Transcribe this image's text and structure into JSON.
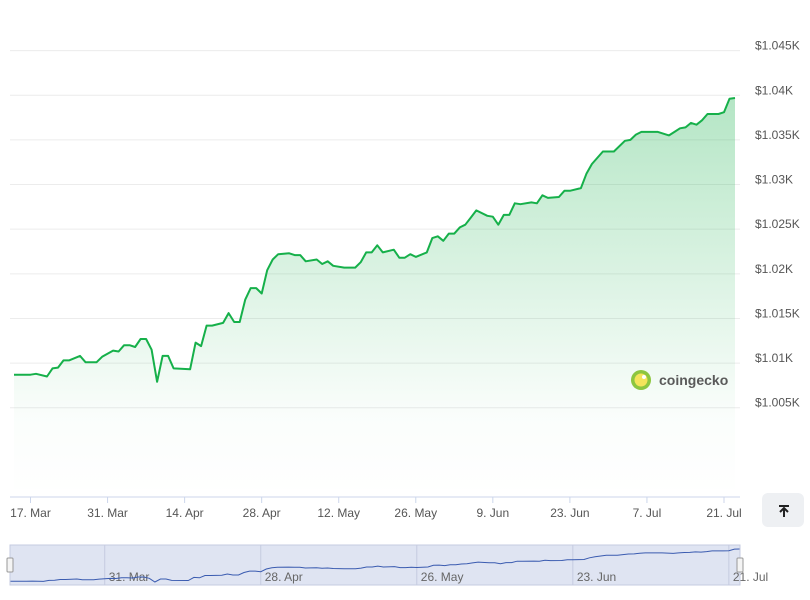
{
  "chart_data": {
    "type": "area",
    "x": [
      "03-14",
      "03-17",
      "03-18",
      "03-20",
      "03-21",
      "03-22",
      "03-23",
      "03-24",
      "03-26",
      "03-27",
      "03-29",
      "03-30",
      "04-01",
      "04-02",
      "04-03",
      "04-04",
      "04-05",
      "04-06",
      "04-07",
      "04-08",
      "04-09",
      "04-10",
      "04-11",
      "04-12",
      "04-15",
      "04-16",
      "04-17",
      "04-18",
      "04-19",
      "04-21",
      "04-22",
      "04-23",
      "04-24",
      "04-25",
      "04-26",
      "04-27",
      "04-28",
      "04-29",
      "04-30",
      "05-01",
      "05-03",
      "05-04",
      "05-05",
      "05-06",
      "05-08",
      "05-09",
      "05-10",
      "05-11",
      "05-13",
      "05-15",
      "05-16",
      "05-17",
      "05-18",
      "05-19",
      "05-20",
      "05-22",
      "05-23",
      "05-24",
      "05-25",
      "05-26",
      "05-28",
      "05-29",
      "05-30",
      "05-31",
      "06-01",
      "06-02",
      "06-03",
      "06-04",
      "06-05",
      "06-06",
      "06-08",
      "06-09",
      "06-10",
      "06-11",
      "06-12",
      "06-13",
      "06-14",
      "06-16",
      "06-17",
      "06-18",
      "06-19",
      "06-21",
      "06-22",
      "06-23",
      "06-25",
      "06-26",
      "06-27",
      "06-29",
      "07-01",
      "07-03",
      "07-04",
      "07-05",
      "07-06",
      "07-09",
      "07-11",
      "07-12",
      "07-13",
      "07-14",
      "07-15",
      "07-16",
      "07-17",
      "07-18",
      "07-20",
      "07-21",
      "07-22",
      "07-23"
    ],
    "values": [
      1008.7,
      1008.7,
      1008.8,
      1008.5,
      1009.4,
      1009.5,
      1010.3,
      1010.3,
      1010.8,
      1010.1,
      1010.1,
      1010.7,
      1011.4,
      1011.3,
      1012.0,
      1012.0,
      1011.8,
      1012.7,
      1012.7,
      1011.5,
      1007.9,
      1010.8,
      1010.8,
      1009.4,
      1009.3,
      1012.3,
      1011.9,
      1014.2,
      1014.2,
      1014.5,
      1015.6,
      1014.6,
      1014.6,
      1017.1,
      1018.4,
      1018.4,
      1017.8,
      1020.4,
      1021.6,
      1022.2,
      1022.3,
      1022.1,
      1022.1,
      1021.4,
      1021.6,
      1021.1,
      1021.4,
      1020.9,
      1020.7,
      1020.7,
      1021.3,
      1022.4,
      1022.4,
      1023.2,
      1022.4,
      1022.7,
      1021.8,
      1021.8,
      1022.2,
      1021.9,
      1022.4,
      1024.0,
      1024.2,
      1023.7,
      1024.5,
      1024.5,
      1025.2,
      1025.5,
      1026.3,
      1027.1,
      1026.5,
      1026.4,
      1025.5,
      1026.6,
      1026.6,
      1027.9,
      1027.8,
      1028.0,
      1027.9,
      1028.8,
      1028.5,
      1028.6,
      1029.3,
      1029.3,
      1029.6,
      1031.2,
      1032.3,
      1033.7,
      1033.7,
      1034.9,
      1035.0,
      1035.6,
      1035.9,
      1035.9,
      1035.5,
      1035.9,
      1036.3,
      1036.4,
      1036.9,
      1036.7,
      1037.2,
      1037.9,
      1037.9,
      1038.1,
      1039.6,
      1039.7
    ],
    "color": "#16b04a",
    "xlim": [
      "03-14",
      "07-23"
    ],
    "xticks": [
      {
        "value": "03-17",
        "label": "17. Mar"
      },
      {
        "value": "03-31",
        "label": "31. Mar"
      },
      {
        "value": "04-14",
        "label": "14. Apr"
      },
      {
        "value": "04-28",
        "label": "28. Apr"
      },
      {
        "value": "05-12",
        "label": "12. May"
      },
      {
        "value": "05-26",
        "label": "26. May"
      },
      {
        "value": "06-09",
        "label": "9. Jun"
      },
      {
        "value": "06-23",
        "label": "23. Jun"
      },
      {
        "value": "07-07",
        "label": "7. Jul"
      },
      {
        "value": "07-21",
        "label": "21. Jul"
      }
    ],
    "ylim": [
      995,
      1050
    ],
    "yticks": [
      {
        "value": 1005,
        "label": "$1.005K"
      },
      {
        "value": 1010,
        "label": "$1.01K"
      },
      {
        "value": 1015,
        "label": "$1.015K"
      },
      {
        "value": 1020,
        "label": "$1.02K"
      },
      {
        "value": 1025,
        "label": "$1.025K"
      },
      {
        "value": 1030,
        "label": "$1.03K"
      },
      {
        "value": 1035,
        "label": "$1.035K"
      },
      {
        "value": 1040,
        "label": "$1.04K"
      },
      {
        "value": 1045,
        "label": "$1.045K"
      }
    ],
    "grid": true,
    "watermark": "coingecko"
  }
}
